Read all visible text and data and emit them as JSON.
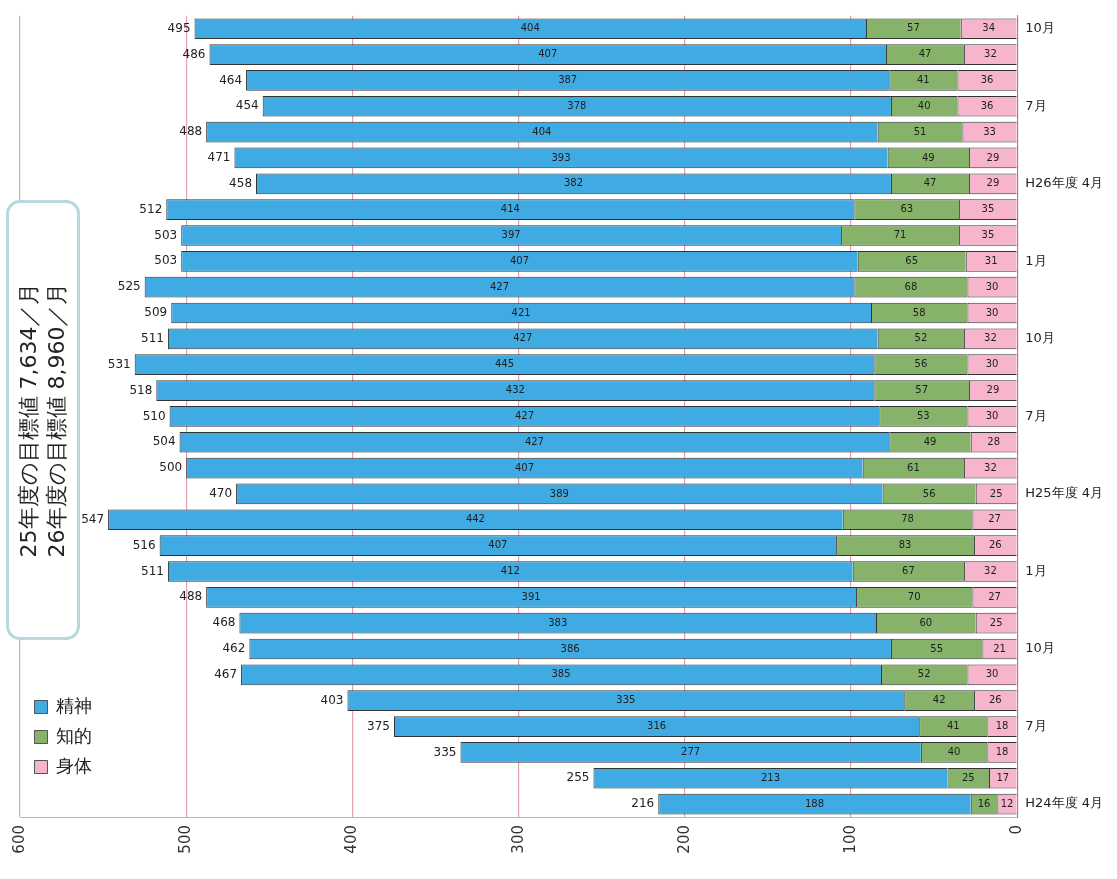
{
  "chart_data": {
    "type": "bar",
    "orientation": "horizontal",
    "stacked": true,
    "categories": [
      "10月",
      null,
      null,
      "7月",
      null,
      null,
      "H26年度 4月",
      null,
      null,
      "1月",
      null,
      null,
      "10月",
      null,
      null,
      "7月",
      null,
      null,
      "H25年度 4月",
      null,
      null,
      "1月",
      null,
      null,
      "10月",
      null,
      null,
      "7月",
      null,
      null,
      "H24年度 4月"
    ],
    "series": [
      {
        "name": "身体",
        "color": "#f6b5cd",
        "values": [
          34,
          32,
          36,
          36,
          33,
          29,
          29,
          35,
          35,
          31,
          30,
          30,
          32,
          30,
          29,
          30,
          28,
          32,
          25,
          27,
          26,
          32,
          27,
          25,
          21,
          30,
          26,
          18,
          18,
          17,
          12
        ]
      },
      {
        "name": "知的",
        "color": "#86b26a",
        "values": [
          57,
          47,
          41,
          40,
          51,
          49,
          47,
          63,
          71,
          65,
          68,
          58,
          52,
          56,
          57,
          53,
          49,
          61,
          56,
          78,
          83,
          67,
          70,
          60,
          55,
          52,
          42,
          41,
          40,
          25,
          16
        ]
      },
      {
        "name": "精神",
        "color": "#40aae2",
        "values": [
          404,
          407,
          387,
          378,
          404,
          393,
          382,
          414,
          397,
          407,
          427,
          421,
          427,
          445,
          432,
          427,
          427,
          407,
          389,
          442,
          407,
          412,
          391,
          383,
          386,
          385,
          335,
          316,
          277,
          213,
          188
        ]
      }
    ],
    "totals": [
      "495",
      "486",
      "464",
      "454",
      "488",
      "471",
      "458",
      "512",
      "503",
      "503",
      "525",
      "509",
      "511",
      "531",
      "518",
      "510",
      "504",
      "500",
      "470",
      "547",
      "516",
      "511",
      "488",
      "468",
      "462",
      "467",
      "403",
      "375",
      "335",
      "255",
      "216"
    ],
    "xlim": [
      600,
      0
    ],
    "xticks": [
      0,
      100,
      200,
      300,
      400,
      500,
      600
    ],
    "grid": "x",
    "legend": "bottom left",
    "data_labels": true,
    "annotations": [
      "25年度の目標値 7,634／月",
      "26年度の目標値 8,960／月"
    ]
  }
}
